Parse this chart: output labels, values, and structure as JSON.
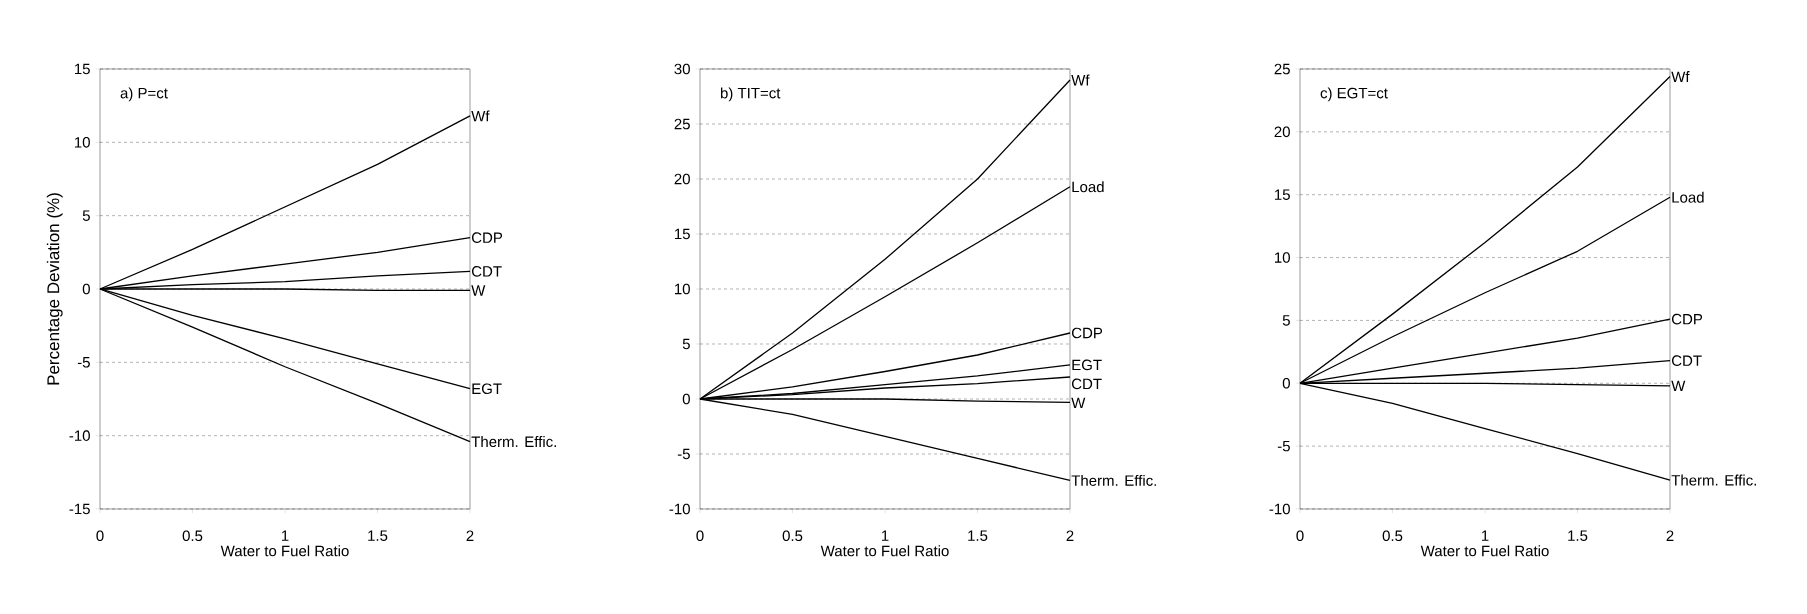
{
  "chart_data": [
    {
      "type": "line",
      "title": "a) P=ct",
      "xlabel": "Water to Fuel Ratio",
      "ylabel": "Percentage Deviation (%)",
      "x": [
        0,
        0.5,
        1,
        1.5,
        2
      ],
      "xlim": [
        0,
        2
      ],
      "xticks": [
        0,
        0.5,
        1,
        1.5,
        2
      ],
      "ylim": [
        -15,
        15
      ],
      "yticks": [
        -15,
        -10,
        -5,
        0,
        5,
        10,
        15
      ],
      "grid": "y",
      "legend": false,
      "marker": "none",
      "series": [
        {
          "name": "Wf",
          "color": "#000000",
          "values": [
            0,
            2.7,
            5.6,
            8.5,
            11.8
          ]
        },
        {
          "name": "CDP",
          "color": "#000000",
          "values": [
            0,
            0.9,
            1.7,
            2.5,
            3.5
          ]
        },
        {
          "name": "CDT",
          "color": "#000000",
          "values": [
            0,
            0.3,
            0.5,
            0.9,
            1.2
          ]
        },
        {
          "name": "W",
          "color": "#000000",
          "values": [
            0,
            0,
            0,
            -0.1,
            -0.1
          ]
        },
        {
          "name": "EGT",
          "color": "#000000",
          "values": [
            0,
            -1.8,
            -3.4,
            -5.1,
            -6.8
          ]
        },
        {
          "name": "Therm. Effic.",
          "color": "#000000",
          "values": [
            0,
            -2.6,
            -5.3,
            -7.8,
            -10.4
          ]
        }
      ]
    },
    {
      "type": "line",
      "title": "b) TIT=ct",
      "xlabel": "Water to Fuel Ratio",
      "x": [
        0,
        0.5,
        1,
        1.5,
        2
      ],
      "xlim": [
        0,
        2
      ],
      "xticks": [
        0,
        0.5,
        1,
        1.5,
        2
      ],
      "ylim": [
        -10,
        30
      ],
      "yticks": [
        -10,
        -5,
        0,
        5,
        10,
        15,
        20,
        25,
        30
      ],
      "grid": "y",
      "legend": false,
      "marker": "none",
      "series": [
        {
          "name": "Wf",
          "color": "#000000",
          "values": [
            0,
            6.0,
            12.7,
            20.0,
            29.0
          ]
        },
        {
          "name": "Load",
          "color": "#000000",
          "values": [
            0,
            4.5,
            9.3,
            14.2,
            19.3
          ]
        },
        {
          "name": "CDP",
          "color": "#000000",
          "values": [
            0,
            1.1,
            2.5,
            4.0,
            6.0
          ]
        },
        {
          "name": "EGT",
          "color": "#000000",
          "values": [
            0,
            0.5,
            1.3,
            2.1,
            3.1
          ]
        },
        {
          "name": "CDT",
          "color": "#000000",
          "values": [
            0,
            0.4,
            1.0,
            1.4,
            2.0
          ]
        },
        {
          "name": "W",
          "color": "#000000",
          "values": [
            0,
            0,
            0,
            -0.2,
            -0.3
          ]
        },
        {
          "name": "Therm. Effic.",
          "color": "#000000",
          "values": [
            0,
            -1.4,
            -3.4,
            -5.4,
            -7.4
          ]
        }
      ]
    },
    {
      "type": "line",
      "title": "c) EGT=ct",
      "xlabel": "Water to Fuel Ratio",
      "x": [
        0,
        0.5,
        1,
        1.5,
        2
      ],
      "xlim": [
        0,
        2
      ],
      "xticks": [
        0,
        0.5,
        1,
        1.5,
        2
      ],
      "ylim": [
        -10,
        25
      ],
      "yticks": [
        -10,
        -5,
        0,
        5,
        10,
        15,
        20,
        25
      ],
      "grid": "y",
      "legend": false,
      "marker": "none",
      "series": [
        {
          "name": "Wf",
          "color": "#000000",
          "values": [
            0,
            5.5,
            11.2,
            17.2,
            24.4
          ]
        },
        {
          "name": "Load",
          "color": "#000000",
          "values": [
            0,
            3.7,
            7.2,
            10.5,
            14.8
          ]
        },
        {
          "name": "CDP",
          "color": "#000000",
          "values": [
            0,
            1.2,
            2.4,
            3.6,
            5.1
          ]
        },
        {
          "name": "CDT",
          "color": "#000000",
          "values": [
            0,
            0.4,
            0.8,
            1.2,
            1.8
          ]
        },
        {
          "name": "W",
          "color": "#000000",
          "values": [
            0,
            0,
            0,
            -0.1,
            -0.2
          ]
        },
        {
          "name": "Therm. Effic.",
          "color": "#000000",
          "values": [
            0,
            -1.6,
            -3.6,
            -5.6,
            -7.7
          ]
        }
      ]
    }
  ]
}
